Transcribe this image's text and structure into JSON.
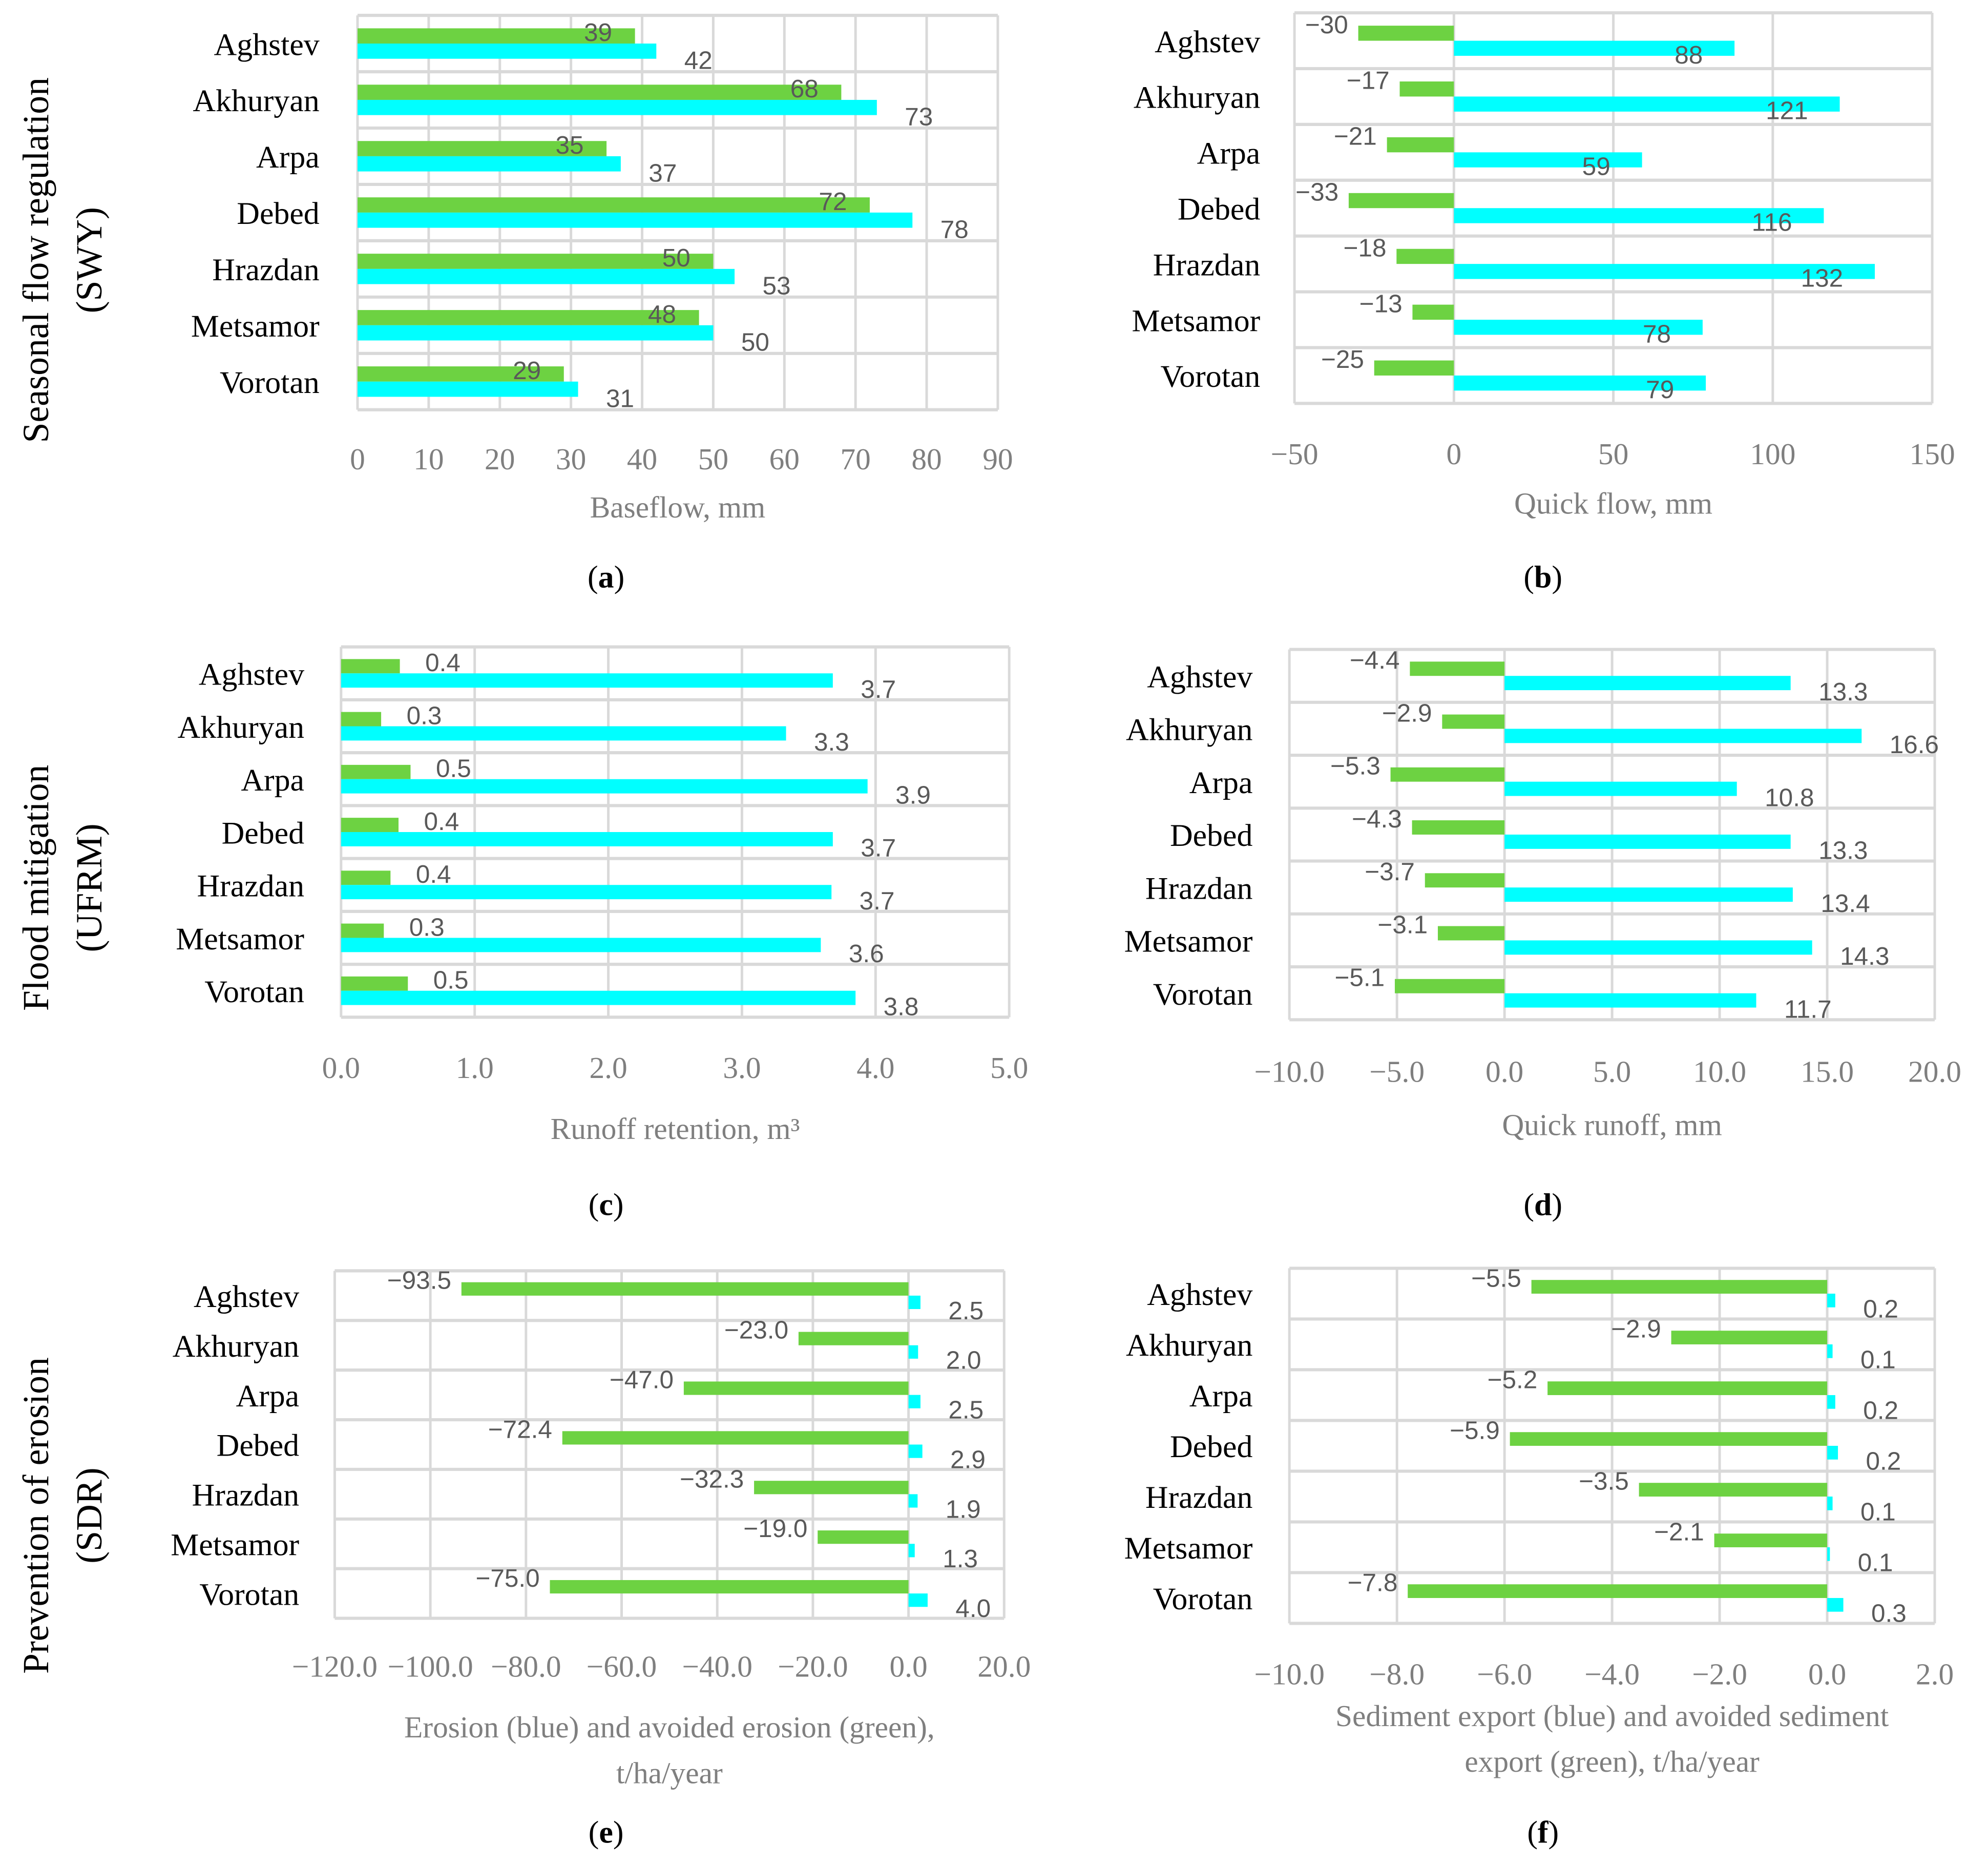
{
  "colors": {
    "avoided": "#6dd242",
    "baseline": "#00ffff",
    "grid": "#d9d9d9",
    "label": "#595959",
    "axis_text": "#7f7f7f"
  },
  "row_labels": [
    {
      "line1": "Seasonal flow regulation",
      "line2": "(SWY)"
    },
    {
      "line1": "Flood mitigation",
      "line2": "(UFRM)"
    },
    {
      "line1": "Prevention of erosion",
      "line2": "(SDR)"
    }
  ],
  "chart_data": [
    {
      "type": "bar",
      "caption": "(a)",
      "xlabel": [
        "Baseflow, mm"
      ],
      "xlim": [
        0,
        90
      ],
      "ticks": [
        0,
        10,
        20,
        30,
        40,
        50,
        60,
        70,
        80,
        90
      ],
      "tick_labels": [
        "0",
        "10",
        "20",
        "30",
        "40",
        "50",
        "60",
        "70",
        "80",
        "90"
      ],
      "categories": [
        "Aghstev",
        "Akhuryan",
        "Arpa",
        "Debed",
        "Hrazdan",
        "Metsamor",
        "Vorotan"
      ],
      "series": [
        {
          "name": "green",
          "values": [
            39,
            68,
            35,
            72,
            50,
            48,
            29
          ],
          "labels": [
            "39",
            "68",
            "35",
            "72",
            "50",
            "48",
            "29"
          ]
        },
        {
          "name": "cyan",
          "values": [
            42,
            73,
            37,
            78,
            53,
            50,
            31
          ],
          "labels": [
            "42",
            "73",
            "37",
            "78",
            "53",
            "50",
            "31"
          ]
        }
      ]
    },
    {
      "type": "bar",
      "caption": "(b)",
      "xlabel": [
        "Quick flow, mm"
      ],
      "xlim": [
        -50,
        150
      ],
      "ticks": [
        -50,
        0,
        50,
        100,
        150
      ],
      "tick_labels": [
        "−50",
        "0",
        "50",
        "100",
        "150"
      ],
      "categories": [
        "Aghstev",
        "Akhuryan",
        "Arpa",
        "Debed",
        "Hrazdan",
        "Metsamor",
        "Vorotan"
      ],
      "series": [
        {
          "name": "green",
          "values": [
            -30,
            -17,
            -21,
            -33,
            -18,
            -13,
            -25
          ],
          "labels": [
            "−30",
            "−17",
            "−21",
            "−33",
            "−18",
            "−13",
            "−25"
          ]
        },
        {
          "name": "cyan",
          "values": [
            88,
            121,
            59,
            116,
            132,
            78,
            79
          ],
          "labels": [
            "88",
            "121",
            "59",
            "116",
            "132",
            "78",
            "79"
          ]
        }
      ]
    },
    {
      "type": "bar",
      "caption": "(c)",
      "xlabel": [
        "Runoff retention, m³"
      ],
      "xlim": [
        0,
        5
      ],
      "ticks": [
        0,
        1,
        2,
        3,
        4,
        5
      ],
      "tick_labels": [
        "0.0",
        "1.0",
        "2.0",
        "3.0",
        "4.0",
        "5.0"
      ],
      "categories": [
        "Aghstev",
        "Akhuryan",
        "Arpa",
        "Debed",
        "Hrazdan",
        "Metsamor",
        "Vorotan"
      ],
      "series": [
        {
          "name": "green",
          "values": [
            0.44,
            0.3,
            0.52,
            0.43,
            0.37,
            0.32,
            0.5
          ],
          "labels": [
            "0.4",
            "0.3",
            "0.5",
            "0.4",
            "0.4",
            "0.3",
            "0.5"
          ]
        },
        {
          "name": "cyan",
          "values": [
            3.68,
            3.33,
            3.94,
            3.68,
            3.67,
            3.59,
            3.85
          ],
          "labels": [
            "3.7",
            "3.3",
            "3.9",
            "3.7",
            "3.7",
            "3.6",
            "3.8"
          ]
        }
      ]
    },
    {
      "type": "bar",
      "caption": "(d)",
      "xlabel": [
        "Quick runoff, mm"
      ],
      "xlim": [
        -10,
        20
      ],
      "ticks": [
        -10,
        -5,
        0,
        5,
        10,
        15,
        20
      ],
      "tick_labels": [
        "−10.0",
        "−5.0",
        "0.0",
        "5.0",
        "10.0",
        "15.0",
        "20.0"
      ],
      "categories": [
        "Aghstev",
        "Akhuryan",
        "Arpa",
        "Debed",
        "Hrazdan",
        "Metsamor",
        "Vorotan"
      ],
      "series": [
        {
          "name": "green",
          "values": [
            -4.4,
            -2.9,
            -5.3,
            -4.3,
            -3.7,
            -3.1,
            -5.1
          ],
          "labels": [
            "−4.4",
            "−2.9",
            "−5.3",
            "−4.3",
            "−3.7",
            "−3.1",
            "−5.1"
          ]
        },
        {
          "name": "cyan",
          "values": [
            13.3,
            16.6,
            10.8,
            13.3,
            13.4,
            14.3,
            11.7
          ],
          "labels": [
            "13.3",
            "16.6",
            "10.8",
            "13.3",
            "13.4",
            "14.3",
            "11.7"
          ]
        }
      ]
    },
    {
      "type": "bar",
      "caption": "(e)",
      "xlabel": [
        "Erosion (blue) and avoided erosion (green),",
        "t/ha/year"
      ],
      "xlim": [
        -120,
        20
      ],
      "ticks": [
        -120,
        -100,
        -80,
        -60,
        -40,
        -20,
        0,
        20
      ],
      "tick_labels": [
        "−120.0",
        "−100.0",
        "−80.0",
        "−60.0",
        "−40.0",
        "−20.0",
        "0.0",
        "20.0"
      ],
      "categories": [
        "Aghstev",
        "Akhuryan",
        "Arpa",
        "Debed",
        "Hrazdan",
        "Metsamor",
        "Vorotan"
      ],
      "series": [
        {
          "name": "green",
          "values": [
            -93.5,
            -23.0,
            -47.0,
            -72.4,
            -32.3,
            -19.0,
            -75.0
          ],
          "labels": [
            "−93.5",
            "−23.0",
            "−47.0",
            "−72.4",
            "−32.3",
            "−19.0",
            "−75.0"
          ]
        },
        {
          "name": "cyan",
          "values": [
            2.5,
            2.0,
            2.5,
            2.9,
            1.9,
            1.3,
            4.0
          ],
          "labels": [
            "2.5",
            "2.0",
            "2.5",
            "2.9",
            "1.9",
            "1.3",
            "4.0"
          ]
        }
      ]
    },
    {
      "type": "bar",
      "caption": "(f)",
      "xlabel": [
        "Sediment export (blue) and avoided sediment",
        "export  (green), t/ha/year"
      ],
      "xlim": [
        -10,
        2
      ],
      "ticks": [
        -10,
        -8,
        -6,
        -4,
        -2,
        0,
        2
      ],
      "tick_labels": [
        "−10.0",
        "−8.0",
        "−6.0",
        "−4.0",
        "−2.0",
        "0.0",
        "2.0"
      ],
      "categories": [
        "Aghstev",
        "Akhuryan",
        "Arpa",
        "Debed",
        "Hrazdan",
        "Metsamor",
        "Vorotan"
      ],
      "series": [
        {
          "name": "green",
          "values": [
            -5.5,
            -2.9,
            -5.2,
            -5.9,
            -3.5,
            -2.1,
            -7.8
          ],
          "labels": [
            "−5.5",
            "−2.9",
            "−5.2",
            "−5.9",
            "−3.5",
            "−2.1",
            "−7.8"
          ]
        },
        {
          "name": "cyan",
          "values": [
            0.15,
            0.1,
            0.15,
            0.2,
            0.1,
            0.05,
            0.3
          ],
          "labels": [
            "0.2",
            "0.1",
            "0.2",
            "0.2",
            "0.1",
            "0.1",
            "0.3"
          ]
        }
      ]
    }
  ]
}
